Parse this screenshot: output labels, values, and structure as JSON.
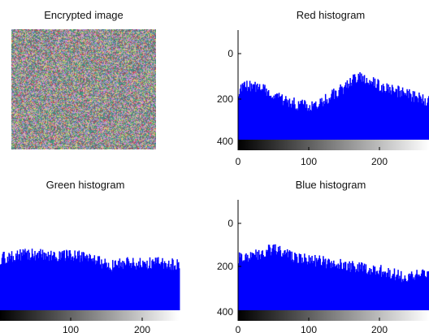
{
  "encrypted": {
    "title": "Encrypted image",
    "palette": [
      "#c64a5a",
      "#4fa86a",
      "#8a8fd0",
      "#d9d96a",
      "#b0b0b0",
      "#5a6a7a",
      "#e08cd8",
      "#3a8a8a"
    ]
  },
  "chart_data": [
    {
      "type": "bar",
      "title": "Red histogram",
      "color": "#0000ff",
      "xlim": [
        0,
        255
      ],
      "ylim": [
        0,
        500
      ],
      "xticks": [
        "0",
        "100",
        "200"
      ],
      "yticks": [
        "0",
        "200",
        "400"
      ],
      "shape_x": [
        0,
        10,
        20,
        30,
        40,
        60,
        80,
        100,
        120,
        140,
        150,
        160,
        170,
        180,
        200,
        220,
        240,
        255
      ],
      "shape_y": [
        225,
        245,
        240,
        250,
        215,
        180,
        160,
        150,
        190,
        235,
        265,
        285,
        280,
        260,
        230,
        215,
        190,
        175
      ]
    },
    {
      "type": "bar",
      "title": "Green histogram",
      "color": "#0000ff",
      "xlim": [
        0,
        255
      ],
      "xticks": [
        "100",
        "200"
      ],
      "shape_x": [
        0,
        20,
        40,
        60,
        80,
        100,
        120,
        140,
        155,
        165,
        180,
        200,
        220,
        240,
        255
      ],
      "shape_y": [
        235,
        245,
        255,
        250,
        240,
        250,
        240,
        225,
        200,
        205,
        215,
        210,
        215,
        210,
        205
      ]
    },
    {
      "type": "bar",
      "title": "Blue histogram",
      "color": "#0000ff",
      "xlim": [
        0,
        255
      ],
      "ylim": [
        0,
        500
      ],
      "xticks": [
        "0",
        "100",
        "200"
      ],
      "yticks": [
        "0",
        "200",
        "400"
      ],
      "shape_x": [
        0,
        20,
        40,
        50,
        60,
        80,
        100,
        120,
        140,
        160,
        180,
        200,
        220,
        240,
        255
      ],
      "shape_y": [
        240,
        250,
        270,
        275,
        255,
        240,
        225,
        215,
        205,
        195,
        185,
        170,
        150,
        160,
        175
      ]
    }
  ]
}
